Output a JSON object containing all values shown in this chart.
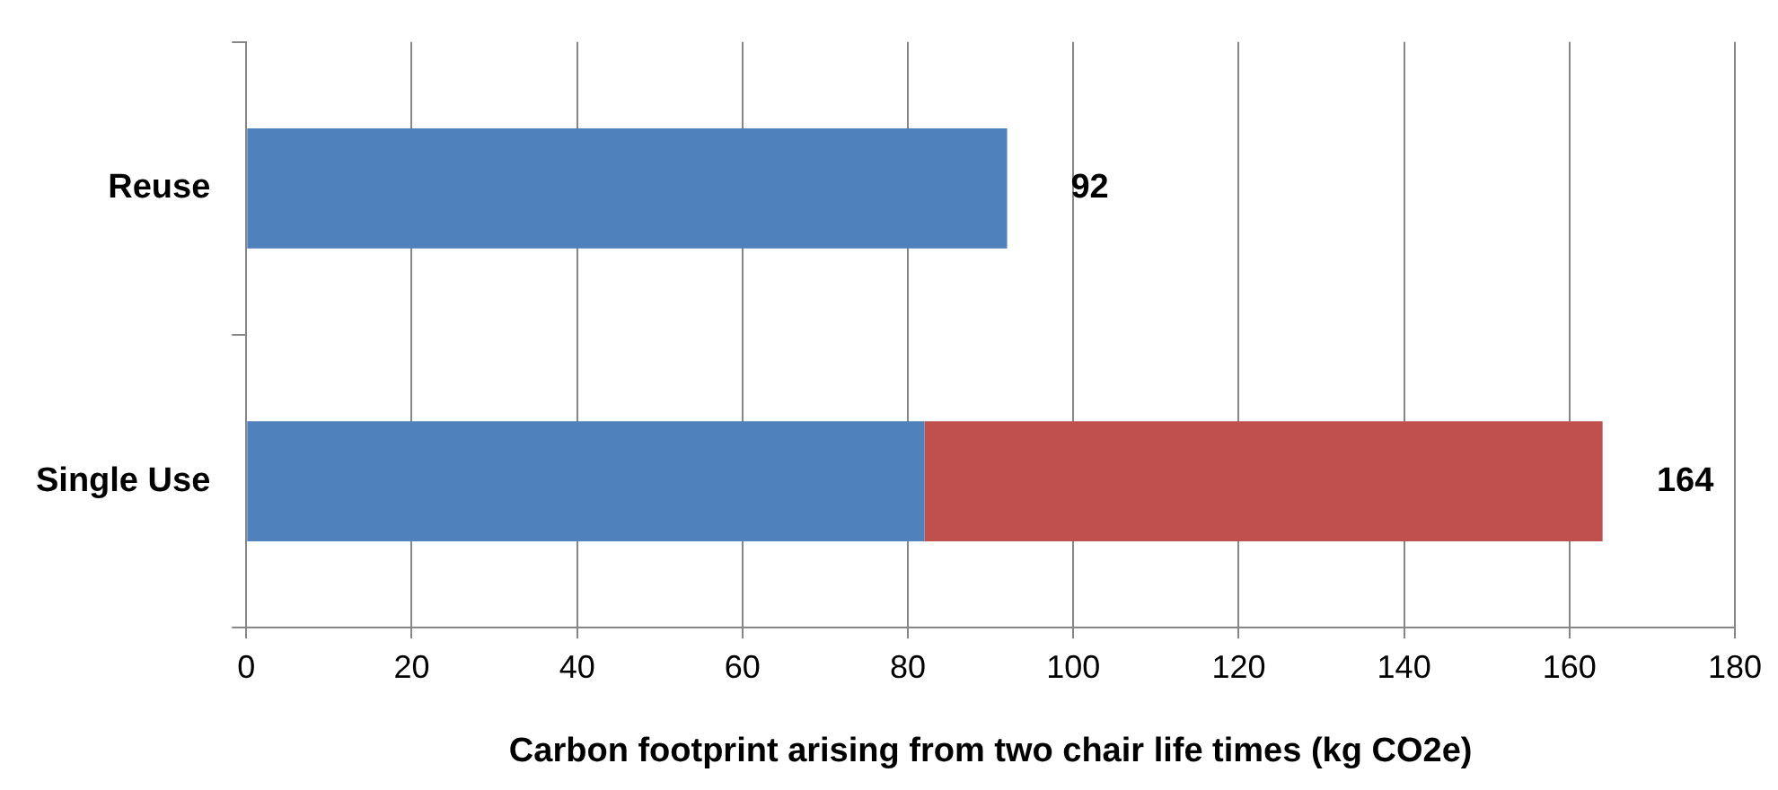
{
  "chart_data": {
    "type": "bar",
    "orientation": "horizontal",
    "stacked": true,
    "categories": [
      "Reuse",
      "Single Use"
    ],
    "series": [
      {
        "color": "#4f81bd",
        "values": [
          92,
          82
        ]
      },
      {
        "color": "#c0504d",
        "values": [
          null,
          82
        ]
      }
    ],
    "xlim": [
      0,
      180
    ],
    "xticks": [
      0,
      20,
      40,
      60,
      80,
      100,
      120,
      140,
      160,
      180
    ],
    "grid": "x",
    "legend": false,
    "totals": [
      "92",
      "164"
    ],
    "xlabel": "Carbon footprint arising from two chair life times (kg CO2e)"
  }
}
